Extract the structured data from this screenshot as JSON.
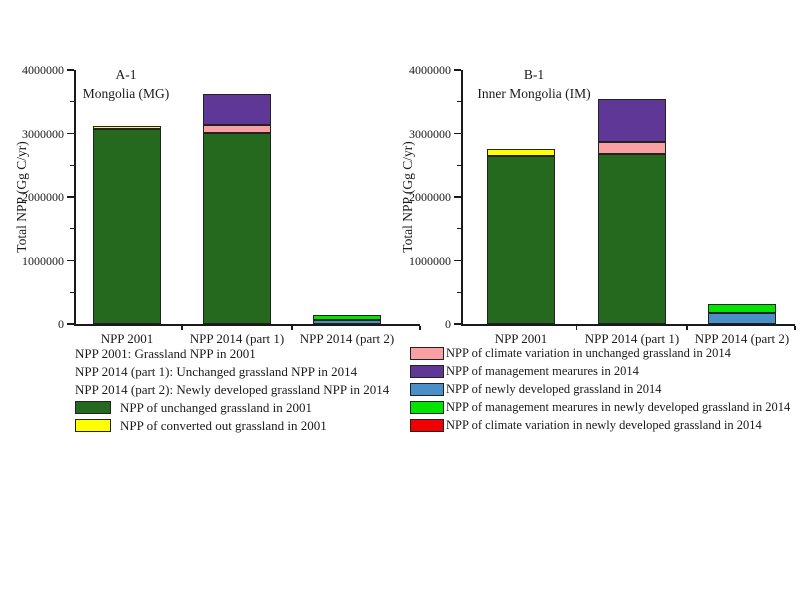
{
  "figure": {
    "background": "#ffffff",
    "text_color": "#1a1a1a",
    "bar_border_color": "#222222"
  },
  "chart_data": [
    {
      "type": "bar",
      "stacked": true,
      "panel_label": "A-1",
      "region_label": "Mongolia (MG)",
      "ylabel": "Total NPP (Gg C/yr)",
      "ylim": [
        0,
        4000000
      ],
      "yticks": [
        0,
        1000000,
        2000000,
        3000000,
        4000000
      ],
      "ytick_labels": [
        "0",
        "1000000",
        "2000000",
        "3000000",
        "4000000"
      ],
      "minor_tick_step": 500000,
      "categories": [
        "NPP 2001",
        "NPP 2014 (part 1)",
        "NPP 2014 (part 2)"
      ],
      "bars": [
        {
          "category": "NPP 2001",
          "total": 3120000,
          "segments": [
            {
              "label": "NPP of unchanged grassland in 2001",
              "color": "#25691e",
              "value": 3070000
            },
            {
              "label": "NPP of converted out grassland in 2001",
              "color": "#ffff00",
              "value": 50000
            }
          ]
        },
        {
          "category": "NPP 2014 (part 1)",
          "total": 3620000,
          "segments": [
            {
              "label": "NPP of unchanged grassland in 2001",
              "color": "#25691e",
              "value": 3010000
            },
            {
              "label": "NPP of climate variation in unchanged grassland in 2014",
              "color": "#f9a0a5",
              "value": 130000
            },
            {
              "label": "NPP of management mearures in 2014",
              "color": "#5e3797",
              "value": 480000
            }
          ]
        },
        {
          "category": "NPP 2014 (part 2)",
          "total": 140000,
          "segments": [
            {
              "label": "NPP of newly developed grassland in 2014",
              "color": "#4a90c8",
              "value": 60000
            },
            {
              "label": "NPP of management mearures in newly developed grassland in 2014",
              "color": "#00e400",
              "value": 80000
            }
          ]
        }
      ],
      "legend": {
        "notes": [
          "NPP 2001: Grassland NPP in 2001",
          "NPP 2014 (part 1): Unchanged grassland NPP in 2014",
          "NPP 2014 (part 2): Newly developed grassland NPP in 2014"
        ],
        "items": [
          {
            "label": "NPP of unchanged grassland in 2001",
            "color": "#25691e"
          },
          {
            "label": "NPP of converted out grassland in 2001",
            "color": "#ffff00"
          }
        ]
      }
    },
    {
      "type": "bar",
      "stacked": true,
      "panel_label": "B-1",
      "region_label": "Inner Mongolia (IM)",
      "ylabel": "Total NPP (Gg C/yr)",
      "ylim": [
        0,
        4000000
      ],
      "yticks": [
        0,
        1000000,
        2000000,
        3000000,
        4000000
      ],
      "ytick_labels": [
        "0",
        "1000000",
        "2000000",
        "3000000",
        "4000000"
      ],
      "minor_tick_step": 500000,
      "categories": [
        "NPP 2001",
        "NPP 2014 (part 1)",
        "NPP 2014 (part 2)"
      ],
      "bars": [
        {
          "category": "NPP 2001",
          "total": 2760000,
          "segments": [
            {
              "label": "NPP of unchanged grassland in 2001",
              "color": "#25691e",
              "value": 2650000
            },
            {
              "label": "NPP of converted out grassland in 2001",
              "color": "#ffff00",
              "value": 110000
            }
          ]
        },
        {
          "category": "NPP 2014 (part 1)",
          "total": 3540000,
          "segments": [
            {
              "label": "NPP of unchanged grassland in 2001",
              "color": "#25691e",
              "value": 2670000
            },
            {
              "label": "NPP of climate variation in unchanged grassland in 2014",
              "color": "#f9a0a5",
              "value": 190000
            },
            {
              "label": "NPP of management mearures in 2014",
              "color": "#5e3797",
              "value": 680000
            }
          ]
        },
        {
          "category": "NPP 2014 (part 2)",
          "total": 310000,
          "segments": [
            {
              "label": "NPP of newly developed grassland in 2014",
              "color": "#4a90c8",
              "value": 170000
            },
            {
              "label": "NPP of management mearures in newly developed grassland in 2014",
              "color": "#00e400",
              "value": 140000
            }
          ]
        }
      ],
      "legend": {
        "notes": [],
        "items": [
          {
            "label": "NPP of climate variation in unchanged grassland in 2014",
            "color": "#f9a0a5"
          },
          {
            "label": "NPP of management mearures in 2014",
            "color": "#5e3797"
          },
          {
            "label": "NPP of newly developed grassland in 2014",
            "color": "#4a90c8"
          },
          {
            "label": "NPP of management mearures in newly developed grassland in 2014",
            "color": "#00e400"
          },
          {
            "label": "NPP of climate variation in newly developed grassland in 2014",
            "color": "#f00000"
          }
        ]
      }
    }
  ]
}
